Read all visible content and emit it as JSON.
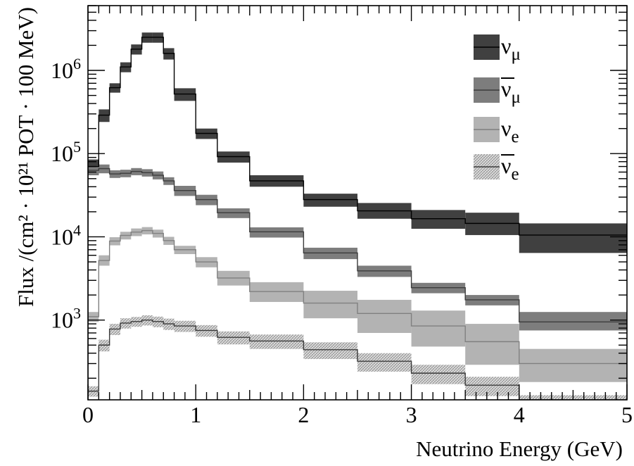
{
  "chart_data": {
    "type": "area",
    "xlabel": "Neutrino Energy (GeV)",
    "ylabel": "Flux /(cm² · 10²¹ POT · 100 MeV)",
    "x_scale": "linear",
    "y_scale": "log",
    "xlim": [
      0,
      5
    ],
    "ylim": [
      110,
      6000000
    ],
    "x_ticks": [
      {
        "value": 0,
        "label": "0"
      },
      {
        "value": 1,
        "label": "1"
      },
      {
        "value": 2,
        "label": "2"
      },
      {
        "value": 3,
        "label": "3"
      },
      {
        "value": 4,
        "label": "4"
      },
      {
        "value": 5,
        "label": "5"
      }
    ],
    "y_ticks": [
      {
        "value": 1000,
        "base": "10",
        "exp": "3"
      },
      {
        "value": 10000,
        "base": "10",
        "exp": "4"
      },
      {
        "value": 100000,
        "base": "10",
        "exp": "5"
      },
      {
        "value": 1000000,
        "base": "10",
        "exp": "6"
      }
    ],
    "bin_edges": [
      0,
      0.1,
      0.2,
      0.3,
      0.4,
      0.5,
      0.6,
      0.7,
      0.8,
      1.0,
      1.2,
      1.5,
      2.0,
      2.5,
      3.0,
      3.5,
      4.0,
      5.0
    ],
    "legend_position": "top-right",
    "series": [
      {
        "name": "νμ",
        "symbol": "ν",
        "subscript": "μ",
        "bar": false,
        "fill": "#404040",
        "line": "#000000",
        "pattern": "solid",
        "values": [
          70000,
          290000,
          620000,
          1100000,
          1800000,
          2500000,
          2500000,
          1600000,
          520000,
          175000,
          92000,
          47000,
          28000,
          20500,
          16500,
          14500,
          10500
        ],
        "lower": [
          55000,
          240000,
          540000,
          950000,
          1550000,
          2150000,
          2150000,
          1350000,
          430000,
          150000,
          78000,
          40000,
          23000,
          16500,
          12500,
          10500,
          6400
        ],
        "upper": [
          85000,
          340000,
          700000,
          1250000,
          2050000,
          2850000,
          2850000,
          1850000,
          610000,
          200000,
          106000,
          55000,
          33000,
          25500,
          21000,
          19500,
          14500
        ]
      },
      {
        "name": "ν̄μ",
        "symbol": "ν",
        "subscript": "μ",
        "bar": true,
        "fill": "#7d7d7d",
        "line": "#3c3c3c",
        "pattern": "solid",
        "values": [
          63000,
          66000,
          57000,
          58000,
          61000,
          59000,
          55000,
          47000,
          36000,
          28000,
          19500,
          11500,
          6400,
          3900,
          2450,
          1750,
          950
        ],
        "lower": [
          55000,
          58000,
          51000,
          52000,
          55000,
          53000,
          49000,
          42000,
          31000,
          24000,
          16800,
          9800,
          5400,
          3300,
          2100,
          1500,
          750
        ],
        "upper": [
          71000,
          74000,
          63000,
          64000,
          67000,
          65000,
          61000,
          52000,
          41000,
          32000,
          22000,
          13000,
          7400,
          4500,
          2800,
          2000,
          1250
        ]
      },
      {
        "name": "νe",
        "symbol": "ν",
        "subscript": "e",
        "bar": false,
        "fill": "#b3b3b3",
        "line": "#808080",
        "pattern": "solid",
        "values": [
          1100,
          5200,
          8900,
          10400,
          11400,
          11900,
          11000,
          9000,
          7000,
          5000,
          3200,
          2200,
          1600,
          1200,
          850,
          550,
          300
        ],
        "lower": [
          950,
          4500,
          7900,
          9300,
          10200,
          10700,
          9800,
          8000,
          6200,
          4300,
          2600,
          1650,
          1050,
          700,
          480,
          290,
          180
        ],
        "upper": [
          1250,
          6000,
          9900,
          11500,
          12600,
          13100,
          12200,
          10000,
          7800,
          5700,
          3900,
          2850,
          2250,
          1750,
          1300,
          900,
          450
        ]
      },
      {
        "name": "ν̄e",
        "symbol": "ν",
        "subscript": "e",
        "bar": true,
        "fill": "#d6d6d6",
        "line": "#3a3a3a",
        "pattern": "hatch",
        "values": [
          140,
          500,
          780,
          920,
          960,
          1000,
          960,
          900,
          850,
          750,
          620,
          560,
          440,
          320,
          230,
          165,
          110
        ],
        "lower": [
          120,
          420,
          660,
          790,
          830,
          860,
          820,
          760,
          720,
          630,
          510,
          450,
          340,
          240,
          170,
          122,
          105
        ],
        "upper": [
          160,
          580,
          900,
          1050,
          1090,
          1140,
          1100,
          1040,
          980,
          870,
          730,
          670,
          540,
          400,
          290,
          208,
          125
        ]
      }
    ]
  }
}
